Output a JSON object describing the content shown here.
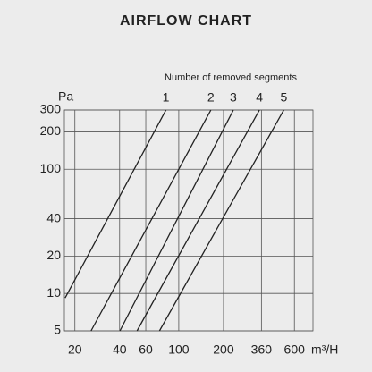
{
  "chart_data": {
    "type": "line",
    "title": "AIRFLOW CHART",
    "subtitle": "Number of removed segments",
    "y_label": "Pa",
    "x_label": "m³/H",
    "log_x": true,
    "log_y": true,
    "grid": true,
    "xlim": [
      17,
      800
    ],
    "ylim": [
      5,
      300
    ],
    "xticks": [
      20,
      40,
      60,
      100,
      200,
      360,
      600
    ],
    "yticks": [
      5,
      10,
      20,
      40,
      100,
      200,
      300
    ],
    "series": [
      {
        "name": "1",
        "color": "#222222",
        "x": [
          17.2,
          82
        ],
        "values": [
          9.2,
          300
        ]
      },
      {
        "name": "2",
        "color": "#222222",
        "x": [
          25.7,
          164.5
        ],
        "values": [
          5,
          300
        ]
      },
      {
        "name": "3",
        "color": "#222222",
        "x": [
          40.2,
          233
        ],
        "values": [
          5,
          300
        ]
      },
      {
        "name": "4",
        "color": "#222222",
        "x": [
          52.4,
          349
        ],
        "values": [
          5,
          300
        ]
      },
      {
        "name": "5",
        "color": "#222222",
        "x": [
          74.2,
          509
        ],
        "values": [
          5,
          300
        ]
      }
    ]
  }
}
